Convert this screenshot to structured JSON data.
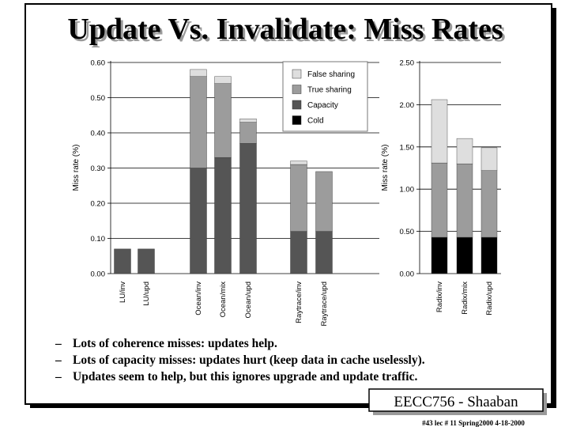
{
  "slide": {
    "title": "Update Vs. Invalidate: Miss Rates",
    "bullet_marker": "–",
    "bullets": [
      "Lots of coherence misses: updates help.",
      "Lots of capacity misses: updates hurt (keep data in cache uselessly).",
      "Updates seem to help, but this ignores upgrade and update traffic."
    ],
    "badge": "EECC756 - Shaaban",
    "footer": "#43   lec # 11   Spring2000   4-18-2000"
  },
  "colors": {
    "false_sharing": "#dedede",
    "true_sharing": "#9c9c9c",
    "capacity": "#555555",
    "cold": "#000000"
  },
  "chart_data": [
    {
      "type": "bar",
      "stacked": true,
      "ylabel": "Miss rate (%)",
      "ylim": [
        0,
        0.6
      ],
      "yticks": [
        "0.00",
        "0.10",
        "0.20",
        "0.30",
        "0.40",
        "0.50",
        "0.60"
      ],
      "grid": true,
      "legend_position": "top-right",
      "categories": [
        "LU/inv",
        "LU/upd",
        "Ocean/inv",
        "Ocean/mix",
        "Ocean/upd",
        "Raytrace/inv",
        "Raytrace/upd"
      ],
      "series": [
        {
          "name": "Cold",
          "values": [
            0,
            0,
            0,
            0,
            0,
            0,
            0
          ]
        },
        {
          "name": "Capacity",
          "values": [
            0.07,
            0.07,
            0.3,
            0.33,
            0.37,
            0.12,
            0.12
          ]
        },
        {
          "name": "True sharing",
          "values": [
            0,
            0,
            0.26,
            0.21,
            0.06,
            0.19,
            0.17
          ]
        },
        {
          "name": "False sharing",
          "values": [
            0,
            0,
            0.02,
            0.02,
            0.01,
            0.01,
            0
          ]
        }
      ]
    },
    {
      "type": "bar",
      "stacked": true,
      "ylabel": "Miss rate (%)",
      "ylim": [
        0,
        2.5
      ],
      "yticks": [
        "0.00",
        "0.50",
        "1.00",
        "1.50",
        "2.00",
        "2.50"
      ],
      "grid": true,
      "categories": [
        "Radix/inv",
        "Radix/mix",
        "Radix/upd"
      ],
      "series": [
        {
          "name": "Cold",
          "values": [
            0.43,
            0.43,
            0.43
          ]
        },
        {
          "name": "Capacity",
          "values": [
            0,
            0,
            0
          ]
        },
        {
          "name": "True sharing",
          "values": [
            0.88,
            0.87,
            0.79
          ]
        },
        {
          "name": "False sharing",
          "values": [
            0.75,
            0.3,
            0.27
          ]
        }
      ]
    }
  ]
}
